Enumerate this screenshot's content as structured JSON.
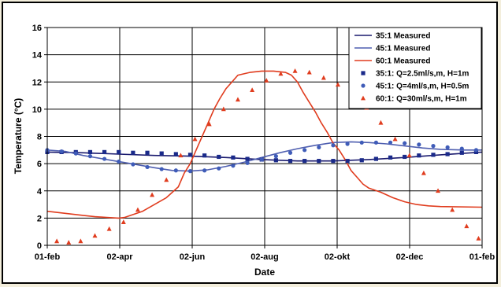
{
  "chart_data": {
    "type": "line",
    "xlabel": "Date",
    "ylabel": "Temperature (°C)",
    "x_ticks": [
      "01-feb",
      "02-apr",
      "02-jun",
      "02-aug",
      "02-okt",
      "02-dec",
      "01-feb"
    ],
    "x_range_days": [
      0,
      365
    ],
    "ylim": [
      0,
      16
    ],
    "y_ticks": [
      0,
      2,
      4,
      6,
      8,
      10,
      12,
      14,
      16
    ],
    "grid": true,
    "legend_position": "top-right",
    "series": [
      {
        "name": "35:1 Measured",
        "style": "line",
        "color": "#1a1a6e",
        "points": [
          [
            0,
            6.85
          ],
          [
            30,
            6.8
          ],
          [
            60,
            6.7
          ],
          [
            90,
            6.6
          ],
          [
            120,
            6.55
          ],
          [
            150,
            6.45
          ],
          [
            180,
            6.3
          ],
          [
            210,
            6.2
          ],
          [
            240,
            6.2
          ],
          [
            270,
            6.3
          ],
          [
            300,
            6.45
          ],
          [
            330,
            6.65
          ],
          [
            365,
            6.85
          ]
        ]
      },
      {
        "name": "45:1 Measured",
        "style": "line",
        "color": "#4f5fb0",
        "points": [
          [
            0,
            7.0
          ],
          [
            15,
            6.9
          ],
          [
            30,
            6.6
          ],
          [
            50,
            6.3
          ],
          [
            70,
            6.0
          ],
          [
            90,
            5.7
          ],
          [
            105,
            5.5
          ],
          [
            120,
            5.45
          ],
          [
            135,
            5.55
          ],
          [
            150,
            5.8
          ],
          [
            165,
            6.1
          ],
          [
            180,
            6.45
          ],
          [
            195,
            6.8
          ],
          [
            210,
            7.1
          ],
          [
            225,
            7.35
          ],
          [
            240,
            7.55
          ],
          [
            255,
            7.6
          ],
          [
            270,
            7.55
          ],
          [
            285,
            7.45
          ],
          [
            300,
            7.3
          ],
          [
            315,
            7.15
          ],
          [
            330,
            7.05
          ],
          [
            350,
            7.0
          ],
          [
            365,
            7.0
          ]
        ]
      },
      {
        "name": "60:1 Measured",
        "style": "line",
        "color": "#e03c1e",
        "points": [
          [
            0,
            2.5
          ],
          [
            10,
            2.4
          ],
          [
            20,
            2.3
          ],
          [
            30,
            2.2
          ],
          [
            40,
            2.1
          ],
          [
            50,
            2.05
          ],
          [
            60,
            2.0
          ],
          [
            65,
            2.05
          ],
          [
            70,
            2.2
          ],
          [
            80,
            2.5
          ],
          [
            90,
            3.0
          ],
          [
            100,
            3.5
          ],
          [
            110,
            4.3
          ],
          [
            115,
            5.3
          ],
          [
            120,
            6.0
          ],
          [
            125,
            7.0
          ],
          [
            130,
            8.0
          ],
          [
            135,
            9.0
          ],
          [
            140,
            10.0
          ],
          [
            145,
            10.8
          ],
          [
            150,
            11.5
          ],
          [
            155,
            12.0
          ],
          [
            160,
            12.5
          ],
          [
            170,
            12.7
          ],
          [
            180,
            12.8
          ],
          [
            190,
            12.8
          ],
          [
            200,
            12.7
          ],
          [
            205,
            12.5
          ],
          [
            210,
            12.0
          ],
          [
            215,
            11.2
          ],
          [
            220,
            10.5
          ],
          [
            225,
            9.8
          ],
          [
            230,
            9.0
          ],
          [
            235,
            8.3
          ],
          [
            240,
            7.5
          ],
          [
            245,
            7.0
          ],
          [
            250,
            6.3
          ],
          [
            255,
            5.5
          ],
          [
            260,
            5.0
          ],
          [
            265,
            4.5
          ],
          [
            270,
            4.2
          ],
          [
            280,
            3.9
          ],
          [
            290,
            3.5
          ],
          [
            300,
            3.2
          ],
          [
            310,
            3.0
          ],
          [
            320,
            2.9
          ],
          [
            330,
            2.85
          ],
          [
            365,
            2.8
          ]
        ]
      },
      {
        "name": "35:1: Q=2.5ml/s,m, H=1m",
        "style": "square-markers",
        "color": "#1a2a8a",
        "points": [
          [
            0,
            6.85
          ],
          [
            12,
            6.85
          ],
          [
            24,
            6.85
          ],
          [
            36,
            6.85
          ],
          [
            48,
            6.85
          ],
          [
            60,
            6.85
          ],
          [
            72,
            6.8
          ],
          [
            84,
            6.8
          ],
          [
            96,
            6.75
          ],
          [
            108,
            6.7
          ],
          [
            120,
            6.65
          ],
          [
            132,
            6.6
          ],
          [
            144,
            6.5
          ],
          [
            156,
            6.45
          ],
          [
            168,
            6.35
          ],
          [
            180,
            6.3
          ],
          [
            192,
            6.25
          ],
          [
            204,
            6.2
          ],
          [
            216,
            6.2
          ],
          [
            228,
            6.2
          ],
          [
            240,
            6.2
          ],
          [
            252,
            6.2
          ],
          [
            264,
            6.25
          ],
          [
            276,
            6.35
          ],
          [
            288,
            6.45
          ],
          [
            300,
            6.5
          ],
          [
            312,
            6.6
          ],
          [
            324,
            6.65
          ],
          [
            336,
            6.7
          ],
          [
            348,
            6.8
          ],
          [
            360,
            6.85
          ]
        ]
      },
      {
        "name": "45:1: Q=4ml/s,m, H=0.5m",
        "style": "diamond-markers",
        "color": "#3f5cb8",
        "points": [
          [
            0,
            7.0
          ],
          [
            12,
            6.9
          ],
          [
            24,
            6.75
          ],
          [
            36,
            6.55
          ],
          [
            48,
            6.35
          ],
          [
            60,
            6.15
          ],
          [
            72,
            5.95
          ],
          [
            84,
            5.75
          ],
          [
            96,
            5.6
          ],
          [
            108,
            5.5
          ],
          [
            120,
            5.45
          ],
          [
            132,
            5.5
          ],
          [
            144,
            5.65
          ],
          [
            156,
            5.85
          ],
          [
            168,
            6.05
          ],
          [
            180,
            6.3
          ],
          [
            192,
            6.55
          ],
          [
            204,
            6.8
          ],
          [
            216,
            7.0
          ],
          [
            228,
            7.2
          ],
          [
            240,
            7.35
          ],
          [
            252,
            7.45
          ],
          [
            264,
            7.55
          ],
          [
            276,
            7.55
          ],
          [
            288,
            7.55
          ],
          [
            300,
            7.5
          ],
          [
            312,
            7.4
          ],
          [
            324,
            7.3
          ],
          [
            336,
            7.2
          ],
          [
            348,
            7.1
          ],
          [
            360,
            7.0
          ]
        ]
      },
      {
        "name": "60:1: Q=30ml/s,m, H=1m",
        "style": "triangle-markers",
        "color": "#e03c1e",
        "points": [
          [
            8,
            0.3
          ],
          [
            18,
            0.2
          ],
          [
            28,
            0.3
          ],
          [
            40,
            0.7
          ],
          [
            52,
            1.2
          ],
          [
            64,
            1.7
          ],
          [
            76,
            2.6
          ],
          [
            88,
            3.7
          ],
          [
            100,
            4.8
          ],
          [
            112,
            6.6
          ],
          [
            124,
            7.8
          ],
          [
            136,
            8.9
          ],
          [
            148,
            10.0
          ],
          [
            160,
            10.7
          ],
          [
            172,
            11.4
          ],
          [
            184,
            12.1
          ],
          [
            196,
            12.6
          ],
          [
            208,
            12.8
          ],
          [
            220,
            12.7
          ],
          [
            232,
            12.3
          ],
          [
            244,
            11.8
          ],
          [
            256,
            11.0
          ],
          [
            268,
            10.1
          ],
          [
            280,
            9.0
          ],
          [
            292,
            7.8
          ],
          [
            304,
            6.6
          ],
          [
            316,
            5.3
          ],
          [
            328,
            4.0
          ],
          [
            340,
            2.6
          ],
          [
            352,
            1.4
          ],
          [
            362,
            0.5
          ]
        ]
      }
    ]
  }
}
